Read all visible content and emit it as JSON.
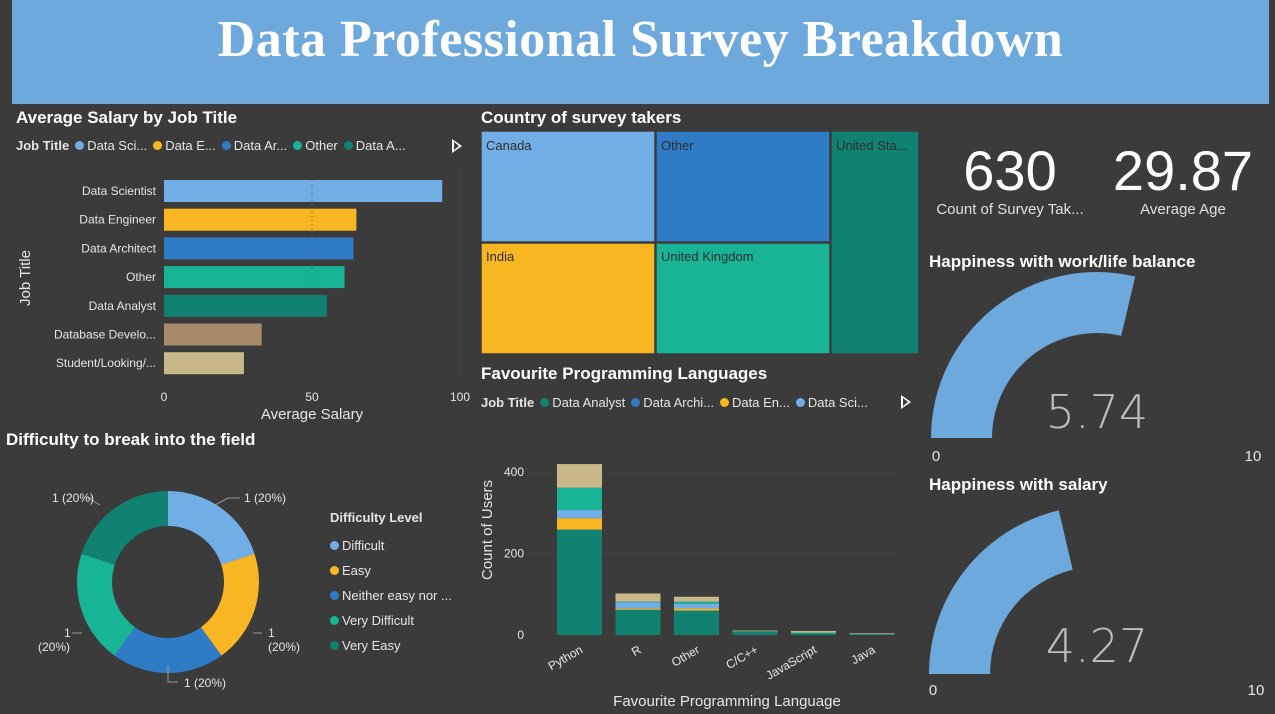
{
  "header": {
    "title": "Data Professional Survey Breakdown"
  },
  "salary_chart": {
    "title": "Average Salary by Job Title",
    "legend_title": "Job Title",
    "legend_items": [
      {
        "label": "Data Sci...",
        "color": "#72aee6"
      },
      {
        "label": "Data E...",
        "color": "#f8b623"
      },
      {
        "label": "Data Ar...",
        "color": "#2f7bc5"
      },
      {
        "label": "Other",
        "color": "#17b596"
      },
      {
        "label": "Data A...",
        "color": "#118172"
      }
    ],
    "ylabel": "Job Title",
    "xlabel": "Average Salary",
    "tick_labels": [
      "0",
      "50",
      "100"
    ]
  },
  "country_chart": {
    "title": "Country of survey takers",
    "labels": {
      "canada": "Canada",
      "other": "Other",
      "us": "United Sta...",
      "india": "India",
      "uk": "United Kingdom"
    }
  },
  "kpis": {
    "count_value": "630",
    "count_label": "Count of Survey Tak...",
    "age_value": "29.87",
    "age_label": "Average Age"
  },
  "gauge_worklife": {
    "title": "Happiness with work/life balance",
    "value": 5.74,
    "value_label": "5.74",
    "min_label": "0",
    "max_label": "10"
  },
  "gauge_salary": {
    "title": "Happiness with salary",
    "value": 4.27,
    "value_label": "4.27",
    "min_label": "0",
    "max_label": "10"
  },
  "lang_chart": {
    "title": "Favourite Programming Languages",
    "legend_title": "Job Title",
    "legend_items": [
      {
        "label": "Data Analyst",
        "color": "#118172"
      },
      {
        "label": "Data Archi...",
        "color": "#2f7bc5"
      },
      {
        "label": "Data En...",
        "color": "#f8b623"
      },
      {
        "label": "Data Sci...",
        "color": "#72aee6"
      }
    ],
    "ylabel": "Count of Users",
    "xlabel": "Favourite Programming Language",
    "tick_labels": [
      "0",
      "200",
      "400"
    ]
  },
  "difficulty_chart": {
    "title": "Difficulty to break into the field",
    "legend_title": "Difficulty Level",
    "legend_items": [
      {
        "label": "Difficult",
        "color": "#72aee6"
      },
      {
        "label": "Easy",
        "color": "#f8b623"
      },
      {
        "label": "Neither easy nor ...",
        "color": "#2f7bc5"
      },
      {
        "label": "Very Difficult",
        "color": "#17b596"
      },
      {
        "label": "Very Easy",
        "color": "#118172"
      }
    ],
    "slice_label": "1 (20%)",
    "slice_label_line1": "1",
    "slice_label_line2": "(20%)"
  },
  "chart_data": [
    {
      "type": "bar",
      "title": "Average Salary by Job Title",
      "xlabel": "Average Salary",
      "ylabel": "Job Title",
      "orientation": "horizontal",
      "categories": [
        "Data Scientist",
        "Data Engineer",
        "Data Architect",
        "Other",
        "Data Analyst",
        "Database Develo...",
        "Student/Looking/..."
      ],
      "values": [
        94,
        65,
        64,
        61,
        55,
        33,
        27
      ],
      "colors": [
        "#72aee6",
        "#f8b623",
        "#2f7bc5",
        "#17b596",
        "#118172",
        "#a88a6c",
        "#c9b98a"
      ],
      "xlim": [
        0,
        100
      ]
    },
    {
      "type": "treemap",
      "title": "Country of survey takers",
      "categories": [
        "Canada",
        "Other",
        "United Sta...",
        "India",
        "United Kingdom"
      ],
      "colors": [
        "#72aee6",
        "#2f7bc5",
        "#118172",
        "#f8b623",
        "#17b596"
      ]
    },
    {
      "type": "bar",
      "title": "Favourite Programming Languages",
      "stacked": true,
      "xlabel": "Favourite Programming Language",
      "ylabel": "Count of Users",
      "categories": [
        "Python",
        "R",
        "Other",
        "C/C++",
        "JavaScript",
        "Java"
      ],
      "series": [
        {
          "name": "Data Analyst",
          "color": "#118172",
          "values": [
            259,
            62,
            60,
            9,
            5,
            3
          ]
        },
        {
          "name": "Data Archi...",
          "color": "#2f7bc5",
          "values": [
            0,
            0,
            0,
            0,
            0,
            0
          ]
        },
        {
          "name": "Data En...",
          "color": "#f8b623",
          "values": [
            28,
            3,
            5,
            0,
            0,
            0
          ]
        },
        {
          "name": "Data Sci...",
          "color": "#72aee6",
          "values": [
            20,
            15,
            12,
            0,
            0,
            0
          ]
        },
        {
          "color": "#17b596",
          "values": [
            55,
            2,
            5,
            0,
            1,
            0
          ]
        },
        {
          "color": "#c9b98a",
          "values": [
            58,
            20,
            12,
            2,
            4,
            1
          ]
        }
      ],
      "ylim": [
        0,
        430
      ]
    },
    {
      "type": "pie",
      "title": "Difficulty to break into the field",
      "donut": true,
      "categories": [
        "Difficult",
        "Easy",
        "Neither easy nor ...",
        "Very Difficult",
        "Very Easy"
      ],
      "values": [
        1,
        1,
        1,
        1,
        1
      ],
      "colors": [
        "#72aee6",
        "#f8b623",
        "#2f7bc5",
        "#17b596",
        "#118172"
      ]
    }
  ]
}
